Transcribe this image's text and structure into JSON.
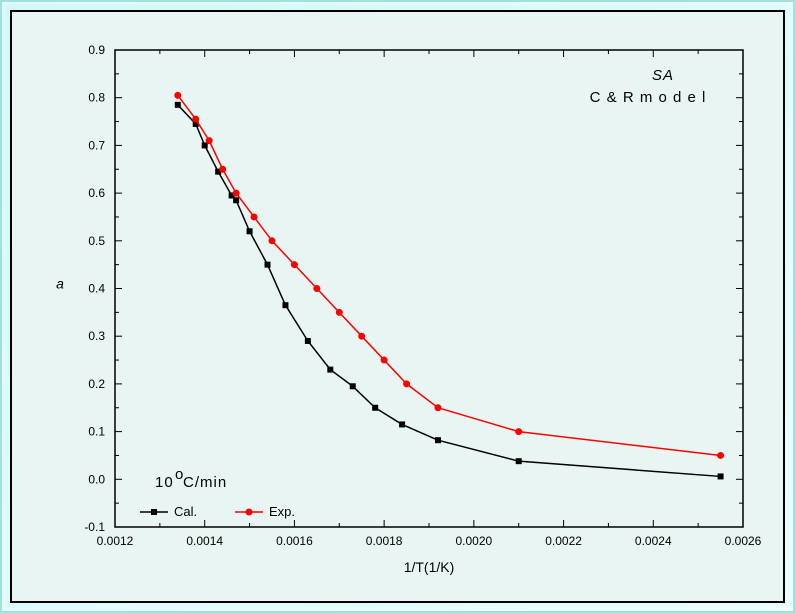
{
  "chart": {
    "type": "line-scatter",
    "background_color": "#e8f5f2",
    "border_color": "#000000",
    "annotations": {
      "title1": "SA",
      "title2": "C & R  m o d e l",
      "rate_label": "10",
      "rate_unit_sup": "o",
      "rate_unit_rest": "C/min"
    },
    "x_axis": {
      "label": "1/T(1/K)",
      "min": 0.0012,
      "max": 0.0026,
      "ticks": [
        0.0012,
        0.0014,
        0.0016,
        0.0018,
        0.002,
        0.0022,
        0.0024,
        0.0026
      ],
      "minor_step": 0.0001
    },
    "y_axis": {
      "label": "a",
      "min": -0.1,
      "max": 0.9,
      "ticks": [
        -0.1,
        0.0,
        0.1,
        0.2,
        0.3,
        0.4,
        0.5,
        0.6,
        0.7,
        0.8,
        0.9
      ],
      "minor_step": 0.05
    },
    "series": [
      {
        "name": "Cal.",
        "label": "Cal.",
        "color": "#000000",
        "marker": "square",
        "marker_size": 5,
        "line_width": 1.5,
        "data": [
          [
            0.00134,
            0.785
          ],
          [
            0.00138,
            0.745
          ],
          [
            0.0014,
            0.7
          ],
          [
            0.00143,
            0.645
          ],
          [
            0.00146,
            0.595
          ],
          [
            0.00147,
            0.585
          ],
          [
            0.0015,
            0.52
          ],
          [
            0.00154,
            0.45
          ],
          [
            0.00158,
            0.365
          ],
          [
            0.00163,
            0.29
          ],
          [
            0.00168,
            0.23
          ],
          [
            0.00173,
            0.195
          ],
          [
            0.00178,
            0.15
          ],
          [
            0.00184,
            0.115
          ],
          [
            0.00192,
            0.082
          ],
          [
            0.0021,
            0.038
          ],
          [
            0.00255,
            0.006
          ]
        ]
      },
      {
        "name": "Exp.",
        "label": "Exp.",
        "color": "#ff0000",
        "marker": "circle",
        "marker_size": 5,
        "line_width": 1.5,
        "data": [
          [
            0.00134,
            0.805
          ],
          [
            0.00138,
            0.755
          ],
          [
            0.00141,
            0.71
          ],
          [
            0.00144,
            0.65
          ],
          [
            0.00147,
            0.6
          ],
          [
            0.00151,
            0.55
          ],
          [
            0.00155,
            0.5
          ],
          [
            0.0016,
            0.45
          ],
          [
            0.00165,
            0.4
          ],
          [
            0.0017,
            0.35
          ],
          [
            0.00175,
            0.3
          ],
          [
            0.0018,
            0.25
          ],
          [
            0.00185,
            0.2
          ],
          [
            0.00192,
            0.15
          ],
          [
            0.0021,
            0.1
          ],
          [
            0.00255,
            0.05
          ]
        ]
      }
    ],
    "legend": {
      "items": [
        "Cal.",
        "Exp."
      ]
    }
  }
}
